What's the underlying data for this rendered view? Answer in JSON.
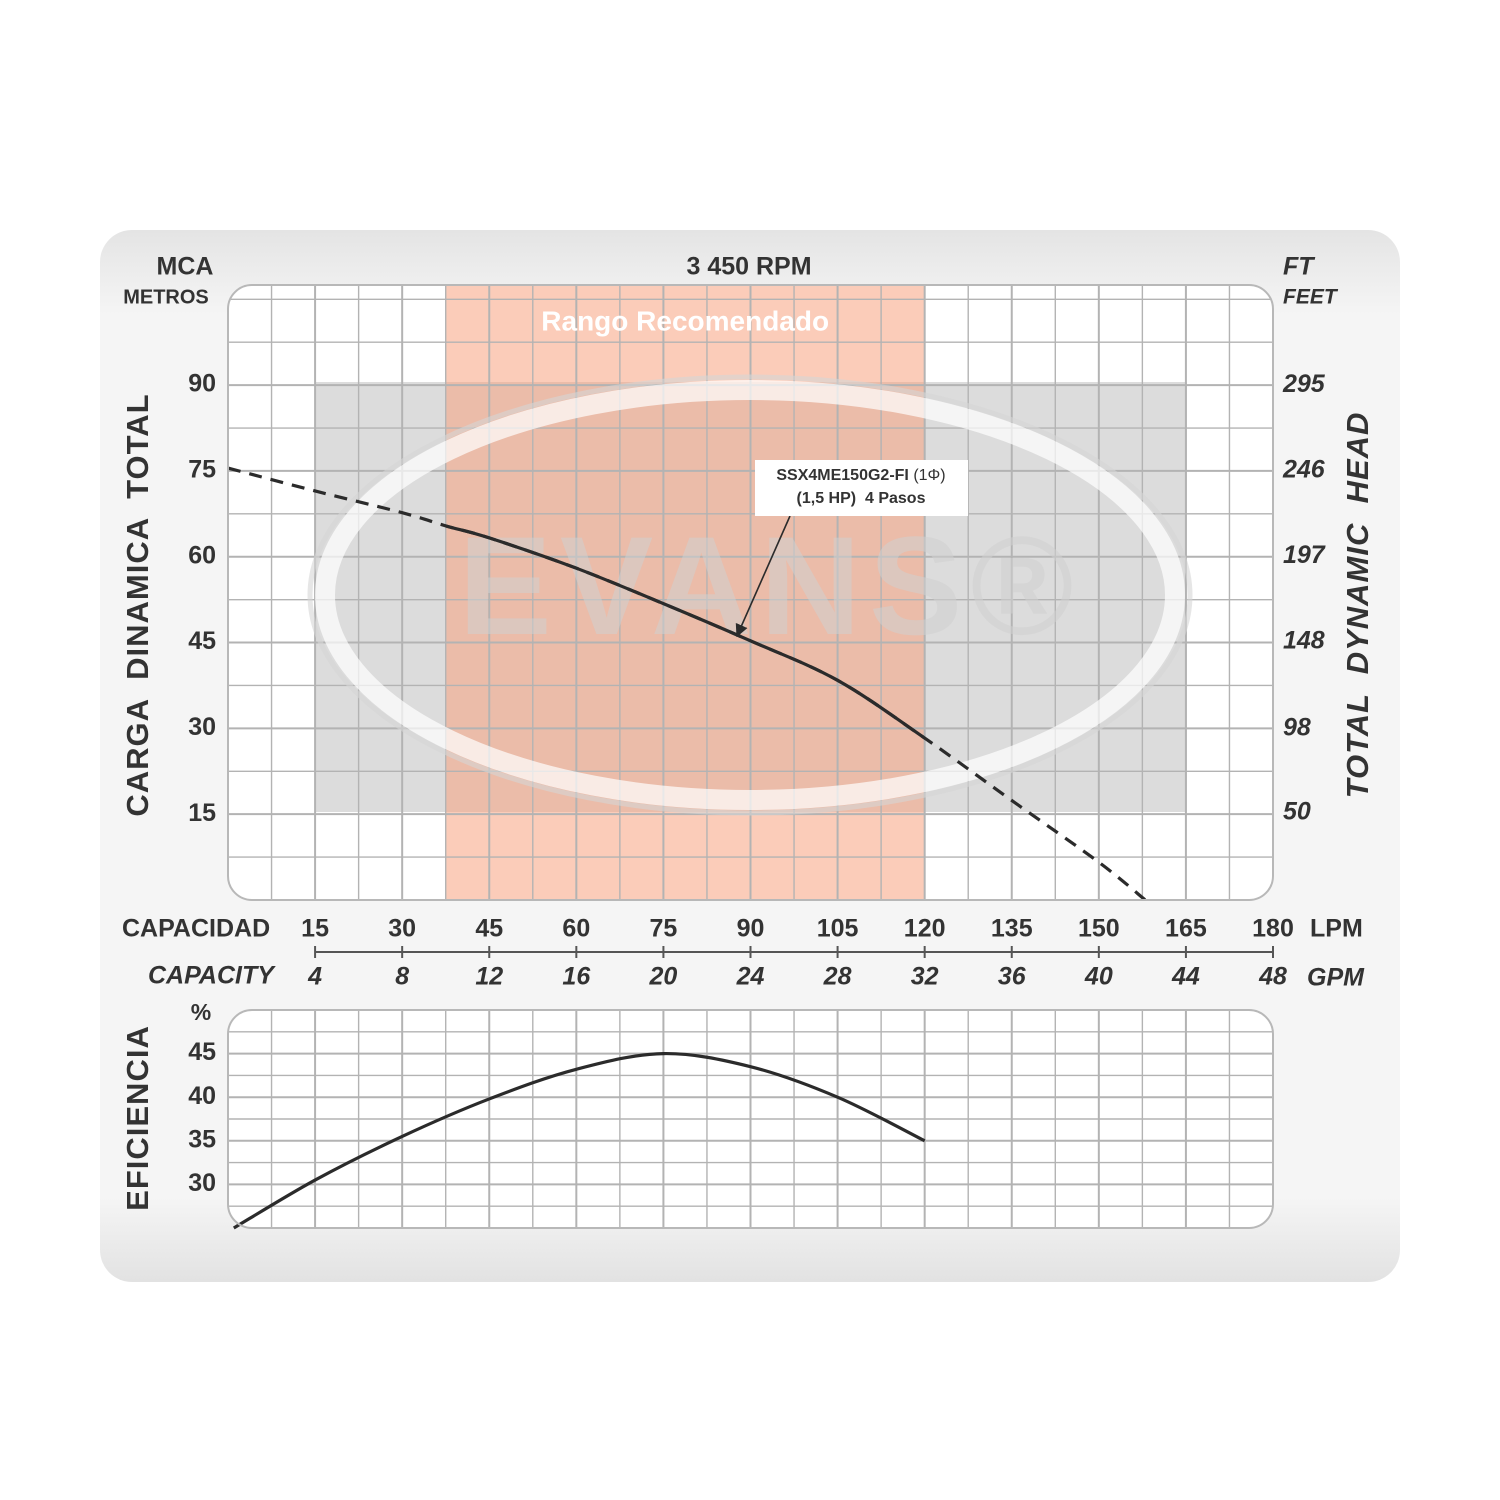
{
  "chart_data": [
    {
      "type": "line",
      "title": "3 450 RPM",
      "yunit": "MCA",
      "yunit_sub": "METROS",
      "y2unit": "FT",
      "y2unit_sub": "FEET",
      "ylabel": "CARGA  DINAMICA  TOTAL",
      "y2label": "TOTAL  DYNAMIC  HEAD",
      "xlabel": "CAPACIDAD",
      "xunit": "LPM",
      "x2label": "CAPACITY",
      "x2unit": "GPM",
      "xlim": [
        0,
        180
      ],
      "xticks": [
        15,
        30,
        45,
        60,
        75,
        90,
        105,
        120,
        135,
        150,
        165,
        180
      ],
      "x2lim": [
        0,
        48
      ],
      "x2ticks": [
        4,
        8,
        12,
        16,
        20,
        24,
        28,
        32,
        36,
        40,
        44,
        48
      ],
      "ylim": [
        0,
        107.5
      ],
      "yticks": [
        15,
        30,
        45,
        60,
        75,
        90
      ],
      "y2lim": [
        0,
        352.7
      ],
      "y2ticks": [
        50,
        98,
        148,
        197,
        246,
        295
      ],
      "grid": true,
      "watermark": "EVANS®",
      "recommended_range": {
        "label": "Rango Recomendado",
        "x": [
          37.5,
          120
        ],
        "color": "#f7a37f"
      },
      "annotation": {
        "model": "SSX4ME150G2-FI",
        "phase": "(1Φ)",
        "detail": "(1,5 HP)  4 Pasos"
      },
      "series": [
        {
          "color": "#2b2b2b",
          "dashed_outside_range": true,
          "x": [
            0,
            15,
            30,
            37.5,
            45,
            60,
            75,
            90,
            105,
            120,
            135,
            150,
            158
          ],
          "values": [
            75.5,
            71.5,
            67.7,
            65.4,
            63.3,
            58,
            51.8,
            45.3,
            38.4,
            28.3,
            17.4,
            6.6,
            0
          ]
        }
      ]
    },
    {
      "type": "line",
      "ylabel": "EFICIENCIA",
      "yunit": "%",
      "xlim": [
        0,
        180
      ],
      "xticks": [
        15,
        30,
        45,
        60,
        75,
        90,
        105,
        120,
        135,
        150,
        165,
        180
      ],
      "ylim": [
        25,
        50
      ],
      "yticks": [
        30,
        35,
        40,
        45
      ],
      "grid": true,
      "series": [
        {
          "color": "#2b2b2b",
          "x": [
            1,
            15,
            30,
            45,
            60,
            75,
            90,
            105,
            120
          ],
          "values": [
            25,
            30.5,
            35.5,
            39.8,
            43.2,
            45,
            43.5,
            40,
            35
          ]
        }
      ]
    }
  ]
}
